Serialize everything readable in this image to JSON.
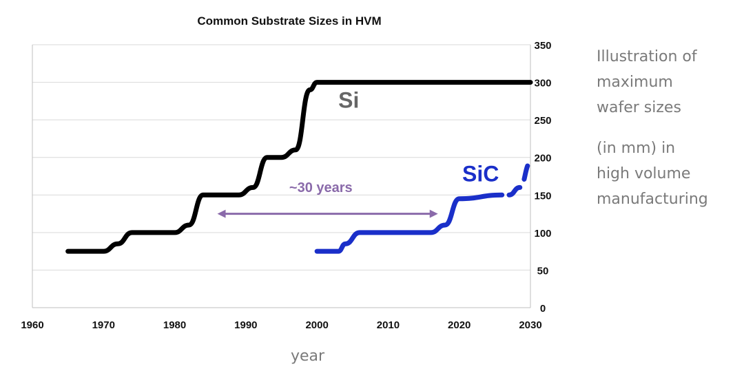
{
  "chart_data": {
    "type": "line",
    "title": "Common Substrate Sizes in HVM",
    "xlabel": "year",
    "ylabel": "",
    "xlim": [
      1960,
      2030
    ],
    "ylim": [
      0,
      350
    ],
    "x_ticks": [
      1960,
      1970,
      1980,
      1990,
      2000,
      2010,
      2020,
      2030
    ],
    "y_ticks": [
      0,
      50,
      100,
      150,
      200,
      250,
      300,
      350
    ],
    "grid": true,
    "colors": {
      "si": "#000000",
      "sic": "#1a2fc9",
      "arrow": "#8a6aaa",
      "grid": "#d9d9d9",
      "si_label": "#666666"
    },
    "series": [
      {
        "name": "Si",
        "x": [
          1965,
          1970,
          1972,
          1974,
          1980,
          1982,
          1984,
          1989,
          1991,
          1993,
          1995,
          1997,
          1999,
          2000,
          2030
        ],
        "y": [
          75,
          75,
          85,
          100,
          100,
          110,
          150,
          150,
          160,
          200,
          200,
          210,
          290,
          300,
          300
        ]
      },
      {
        "name": "SiC",
        "x": [
          2000,
          2003,
          2004,
          2006,
          2016,
          2018,
          2020,
          2026
        ],
        "y": [
          75,
          75,
          85,
          100,
          100,
          110,
          145,
          150
        ]
      },
      {
        "name": "SiC (projected)",
        "style": "dashed",
        "x": [
          2027,
          2028.5,
          2030
        ],
        "y": [
          150,
          160,
          193
        ]
      }
    ],
    "annotations": [
      {
        "text": "Si",
        "x": 2003,
        "y": 266
      },
      {
        "text": "SiC",
        "x": 2023,
        "y": 168
      },
      {
        "text": "~30 years",
        "x": 2002,
        "y": 154,
        "arrow_from": 1986,
        "arrow_to": 2017,
        "arrow_y": 125
      }
    ]
  },
  "side_note": {
    "lines_a": [
      "Illustration of",
      "maximum",
      "wafer sizes"
    ],
    "lines_b": [
      "(in mm) in",
      "high volume",
      "manufacturing"
    ]
  }
}
